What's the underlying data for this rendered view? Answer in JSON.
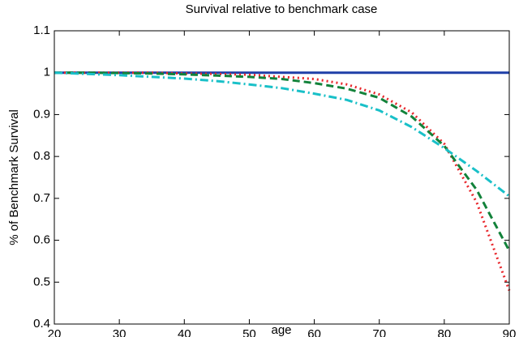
{
  "chart_data": {
    "type": "line",
    "title": "Survival relative to benchmark case",
    "xlabel": "age",
    "ylabel": "% of Benchmark Survival",
    "x": [
      20,
      25,
      30,
      35,
      40,
      45,
      50,
      55,
      60,
      65,
      70,
      75,
      80,
      85,
      90
    ],
    "series": [
      {
        "color": "#1f3fa8",
        "style": "solid",
        "values": [
          1,
          1,
          1,
          1,
          1,
          1,
          1,
          1,
          1,
          1,
          1,
          1,
          1,
          1,
          1
        ]
      },
      {
        "color": "#e8262b",
        "style": "dotted",
        "values": [
          1,
          1,
          1,
          1,
          0.998,
          0.997,
          0.995,
          0.99,
          0.985,
          0.972,
          0.948,
          0.905,
          0.83,
          0.69,
          0.48
        ]
      },
      {
        "color": "#12823a",
        "style": "dashed",
        "values": [
          1,
          1,
          0.999,
          0.998,
          0.996,
          0.993,
          0.99,
          0.985,
          0.975,
          0.962,
          0.94,
          0.895,
          0.825,
          0.72,
          0.575
        ]
      },
      {
        "color": "#19c0c8",
        "style": "dashdot",
        "values": [
          1,
          0.997,
          0.994,
          0.99,
          0.986,
          0.98,
          0.972,
          0.963,
          0.95,
          0.935,
          0.91,
          0.87,
          0.82,
          0.765,
          0.705
        ]
      }
    ],
    "xlim": [
      20,
      90
    ],
    "xticks": [
      20,
      30,
      40,
      50,
      60,
      70,
      80,
      90
    ],
    "ylim": [
      0.4,
      1.1
    ],
    "yticks": [
      0.4,
      0.5,
      0.6,
      0.7,
      0.8,
      0.9,
      1,
      1.1
    ],
    "grid": false
  }
}
